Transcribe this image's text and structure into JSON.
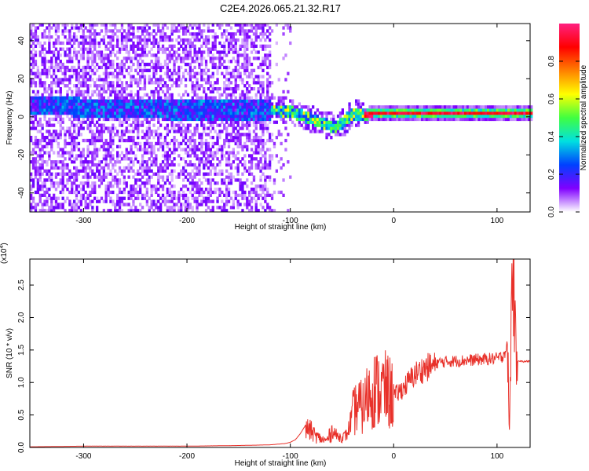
{
  "title": "C2E4.2026.065.21.32.R17",
  "chart_data": [
    {
      "type": "heatmap",
      "xlabel": "Height of straight line (km)",
      "ylabel": "Frequency (Hz)",
      "xlim": [
        -352,
        132
      ],
      "ylim": [
        -50,
        49
      ],
      "x_ticks": [
        "-300",
        "-200",
        "-100",
        "0",
        "100"
      ],
      "x_tick_values": [
        -300,
        -200,
        -100,
        0,
        100
      ],
      "y_ticks": [
        "-40",
        "-20",
        "0",
        "20",
        "40"
      ],
      "y_tick_values": [
        -40,
        -20,
        0,
        20,
        40
      ],
      "colorbar": {
        "label": "Normalized spectral amplitude",
        "range": [
          0,
          1
        ],
        "ticks": [
          "0.0",
          "0.2",
          "0.4",
          "0.6",
          "0.8"
        ],
        "tick_values": [
          0.0,
          0.2,
          0.4,
          0.6,
          0.8
        ],
        "colors": [
          "#ffffff",
          "#8000ff",
          "#0040ff",
          "#00e0e0",
          "#40ff40",
          "#ffff00",
          "#ff8000",
          "#ff0000",
          "#ff2080"
        ]
      },
      "ridge": {
        "x": [
          -320,
          -300,
          -280,
          -250,
          -220,
          -200,
          -180,
          -160,
          -140,
          -120,
          -100,
          -90,
          -80,
          -70,
          -60,
          -55,
          -50,
          -45,
          -40,
          -35,
          -30,
          -20,
          -10,
          0,
          20,
          40,
          60,
          80,
          100,
          110,
          115,
          120,
          132
        ],
        "y": [
          5,
          4,
          4,
          4,
          3,
          3,
          3,
          3,
          3,
          3,
          2,
          0,
          -2,
          -4,
          -6,
          -5,
          -4,
          -1,
          1,
          1,
          0,
          1,
          1,
          1,
          1,
          1,
          1,
          1,
          1,
          1,
          1,
          1,
          1
        ]
      }
    },
    {
      "type": "line",
      "xlabel": "Height of straight line (km)",
      "ylabel": "SNR (10 * v/v)",
      "multiplier": "(x10",
      "multiplier_exp": "4",
      "multiplier_close": ")",
      "xlim": [
        -352,
        132
      ],
      "ylim": [
        0,
        2.9
      ],
      "x_ticks": [
        "-300",
        "-200",
        "-100",
        "0",
        "100"
      ],
      "x_tick_values": [
        -300,
        -200,
        -100,
        0,
        100
      ],
      "y_ticks": [
        "0.0",
        "0.5",
        "1.0",
        "1.5",
        "2.0",
        "2.5"
      ],
      "y_tick_values": [
        0.0,
        0.5,
        1.0,
        1.5,
        2.0,
        2.5
      ],
      "color": "#e8312a",
      "series": [
        {
          "x": [
            -352,
            -300,
            -250,
            -200,
            -150,
            -120,
            -105,
            -100,
            -95,
            -90,
            -85,
            -80,
            -75,
            -70,
            -65,
            -60,
            -55,
            -50,
            -45,
            -40,
            -35,
            -30,
            -25,
            -20,
            -15,
            -10,
            -5,
            0,
            10,
            20,
            30,
            40,
            50,
            60,
            70,
            80,
            90,
            100,
            105,
            110,
            112,
            115,
            118,
            125,
            132
          ],
          "y": [
            0.01,
            0.02,
            0.02,
            0.02,
            0.03,
            0.04,
            0.06,
            0.08,
            0.12,
            0.22,
            0.35,
            0.3,
            0.2,
            0.15,
            0.12,
            0.28,
            0.18,
            0.15,
            0.2,
            0.5,
            0.65,
            0.6,
            0.8,
            0.9,
            0.88,
            0.9,
            0.85,
            0.8,
            0.95,
            1.15,
            1.25,
            1.3,
            1.32,
            1.33,
            1.34,
            1.35,
            1.36,
            1.37,
            1.4,
            1.55,
            0.2,
            2.9,
            1.35,
            1.32,
            1.33
          ]
        }
      ]
    }
  ]
}
